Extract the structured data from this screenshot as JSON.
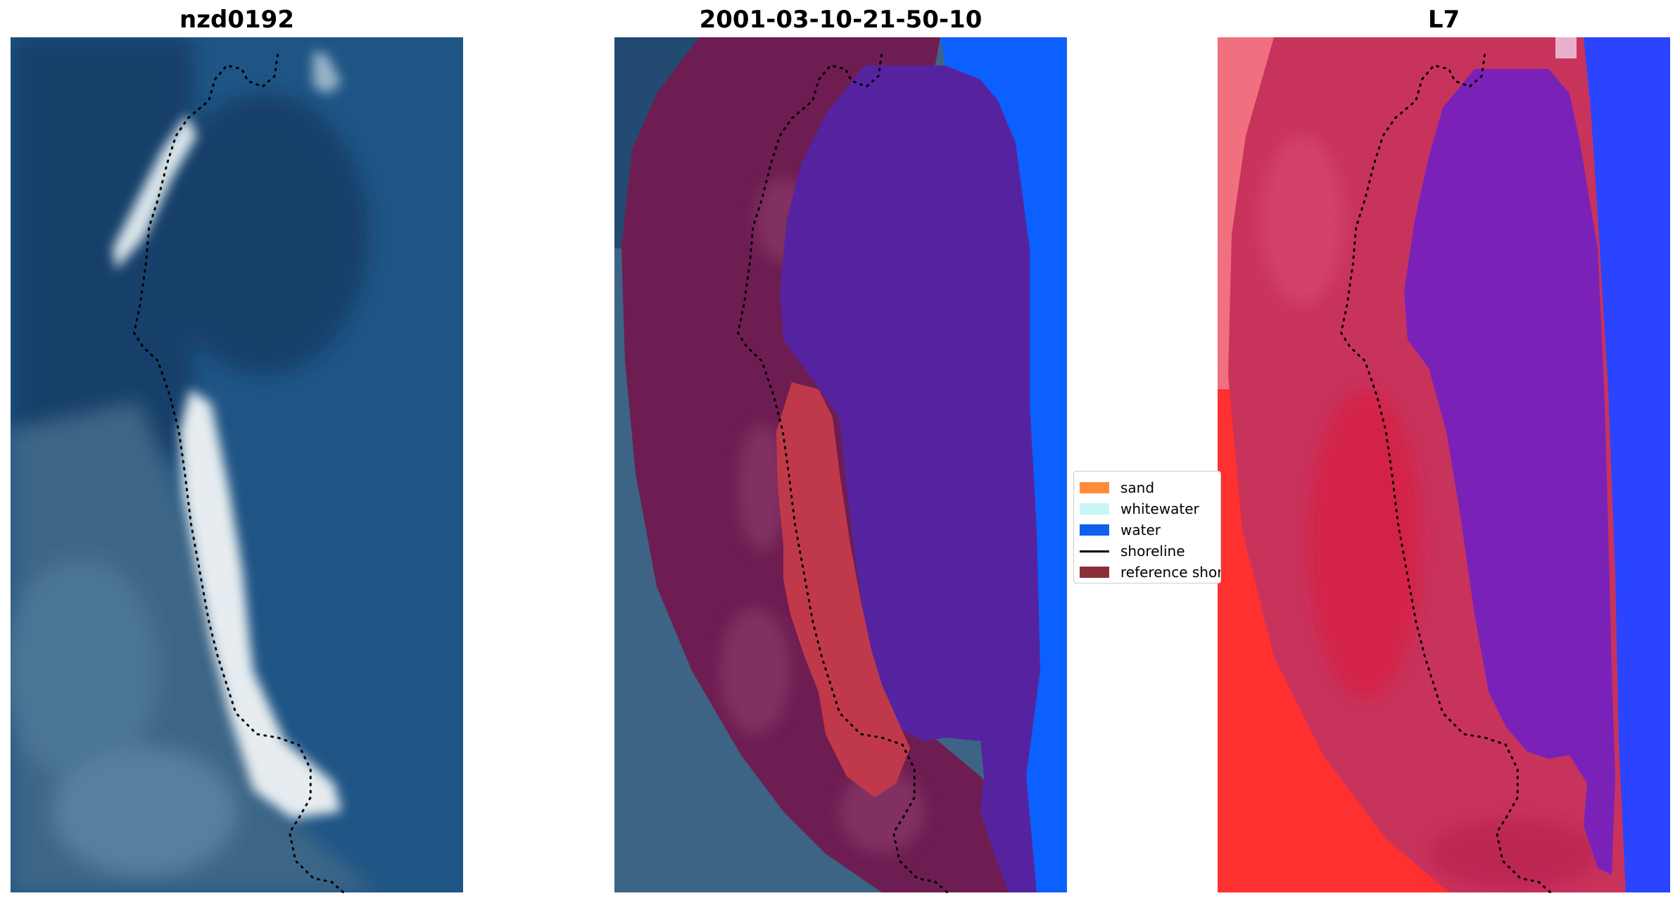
{
  "panels": [
    {
      "id": "rgb",
      "title": "nzd0192"
    },
    {
      "id": "classified",
      "title": "2001-03-10-21-50-10"
    },
    {
      "id": "index",
      "title": "L7"
    }
  ],
  "legend": {
    "items": [
      {
        "label": "sand",
        "kind": "patch",
        "color": "#ff8c3c"
      },
      {
        "label": "whitewater",
        "kind": "patch",
        "color": "#c8f5f5"
      },
      {
        "label": "water",
        "kind": "patch",
        "color": "#1060f0"
      },
      {
        "label": "shoreline",
        "kind": "line",
        "color": "#000000"
      },
      {
        "label": "reference shoreline buffer",
        "kind": "patch",
        "color": "#8b2f35"
      }
    ]
  },
  "colors": {
    "rgb_deep_water": "#173f6b",
    "rgb_water": "#1f5585",
    "rgb_land": "#3e6686",
    "rgb_sand": "#e6ecef",
    "buffer": "#6e1d52",
    "buffer_light": "#8c3a6a",
    "class_water_in_buffer": "#5623a0",
    "class_sand_in_buffer": "#c0394a",
    "class_water": "#0b60ff",
    "class_land_tint": "#4a6c86",
    "index_buffer": "#c8335c",
    "index_water": "#7a22b8",
    "index_land": "#ff2a2a",
    "index_ocean": "#2a44ff"
  }
}
